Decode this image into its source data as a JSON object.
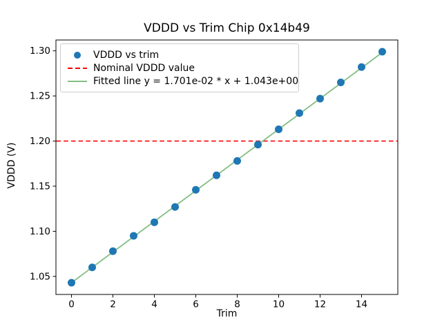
{
  "chart_data": {
    "type": "scatter",
    "title": "VDDD vs Trim Chip 0x14b49",
    "xlabel": "Trim",
    "ylabel": "VDDD (V)",
    "x": [
      0,
      1,
      2,
      3,
      4,
      5,
      6,
      7,
      8,
      9,
      10,
      11,
      12,
      13,
      14,
      15
    ],
    "series": [
      {
        "name": "VDDD vs trim",
        "kind": "scatter",
        "color": "#1f77b4",
        "values": [
          1.043,
          1.06,
          1.078,
          1.095,
          1.11,
          1.127,
          1.146,
          1.162,
          1.178,
          1.196,
          1.213,
          1.231,
          1.247,
          1.265,
          1.282,
          1.299
        ]
      },
      {
        "name": "Nominal VDDD value",
        "kind": "hline",
        "color": "#ff0000",
        "linestyle": "dashed",
        "y": 1.2
      },
      {
        "name": "Fitted line y = 1.701e-02 * x + 1.043e+00",
        "kind": "fit-line",
        "color": "#82be82",
        "linestyle": "solid",
        "slope": 0.01701,
        "intercept": 1.043,
        "x_range": [
          0,
          15
        ]
      }
    ],
    "xlim": [
      -0.75,
      15.75
    ],
    "ylim": [
      1.03,
      1.312
    ],
    "xticks": [
      "0",
      "2",
      "4",
      "6",
      "8",
      "10",
      "12",
      "14"
    ],
    "xtick_values": [
      0,
      2,
      4,
      6,
      8,
      10,
      12,
      14
    ],
    "yticks": [
      "1.05",
      "1.10",
      "1.15",
      "1.20",
      "1.25",
      "1.30"
    ],
    "ytick_values": [
      1.05,
      1.1,
      1.15,
      1.2,
      1.25,
      1.3
    ],
    "grid": false,
    "legend_position": "upper left",
    "axes_color": "#000000",
    "background_color": "#ffffff"
  }
}
